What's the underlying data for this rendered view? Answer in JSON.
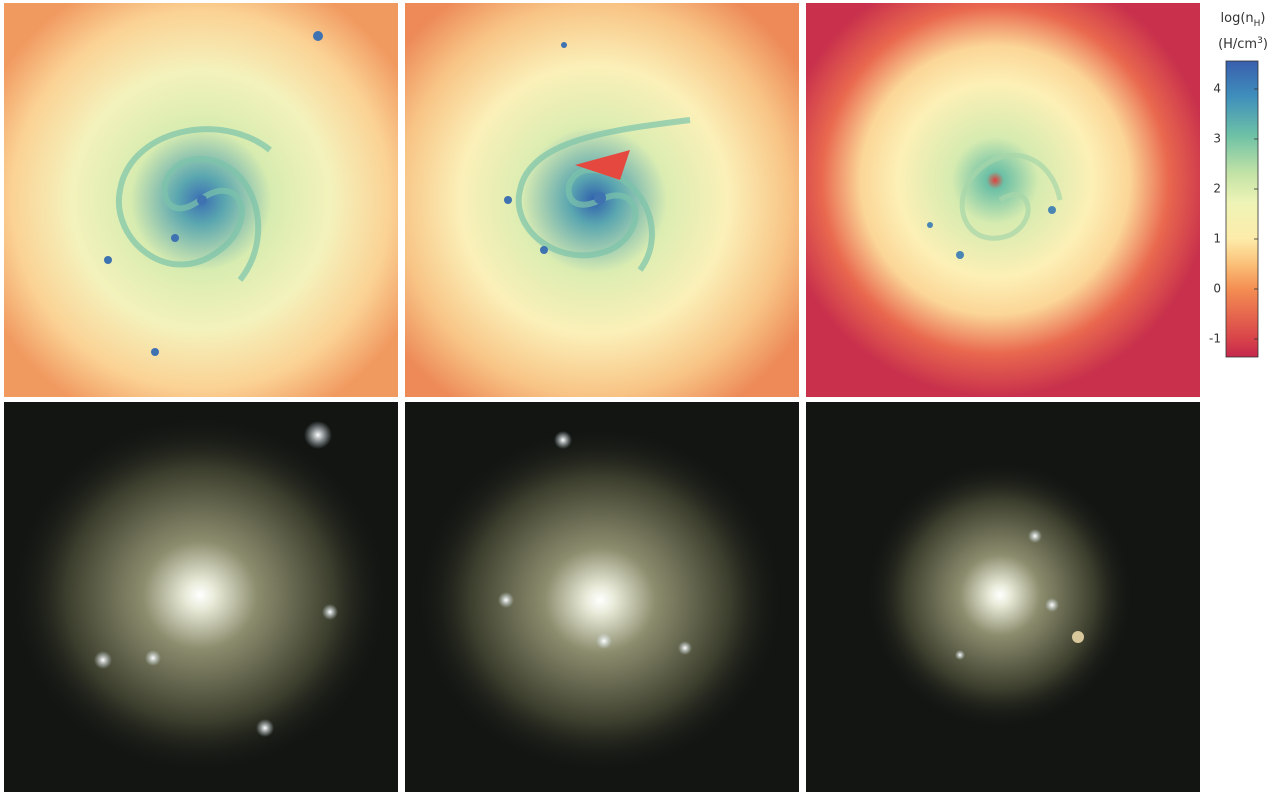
{
  "colorbar": {
    "title": {
      "text": "log(n",
      "subscript": "H",
      "suffix": ")"
    },
    "units": {
      "text": "(H/cm",
      "superscript": "3",
      "suffix": ")"
    },
    "ylim": [
      -1.36,
      4.56
    ],
    "yticks": [
      4,
      3,
      2,
      1,
      0,
      -1
    ]
  }
}
